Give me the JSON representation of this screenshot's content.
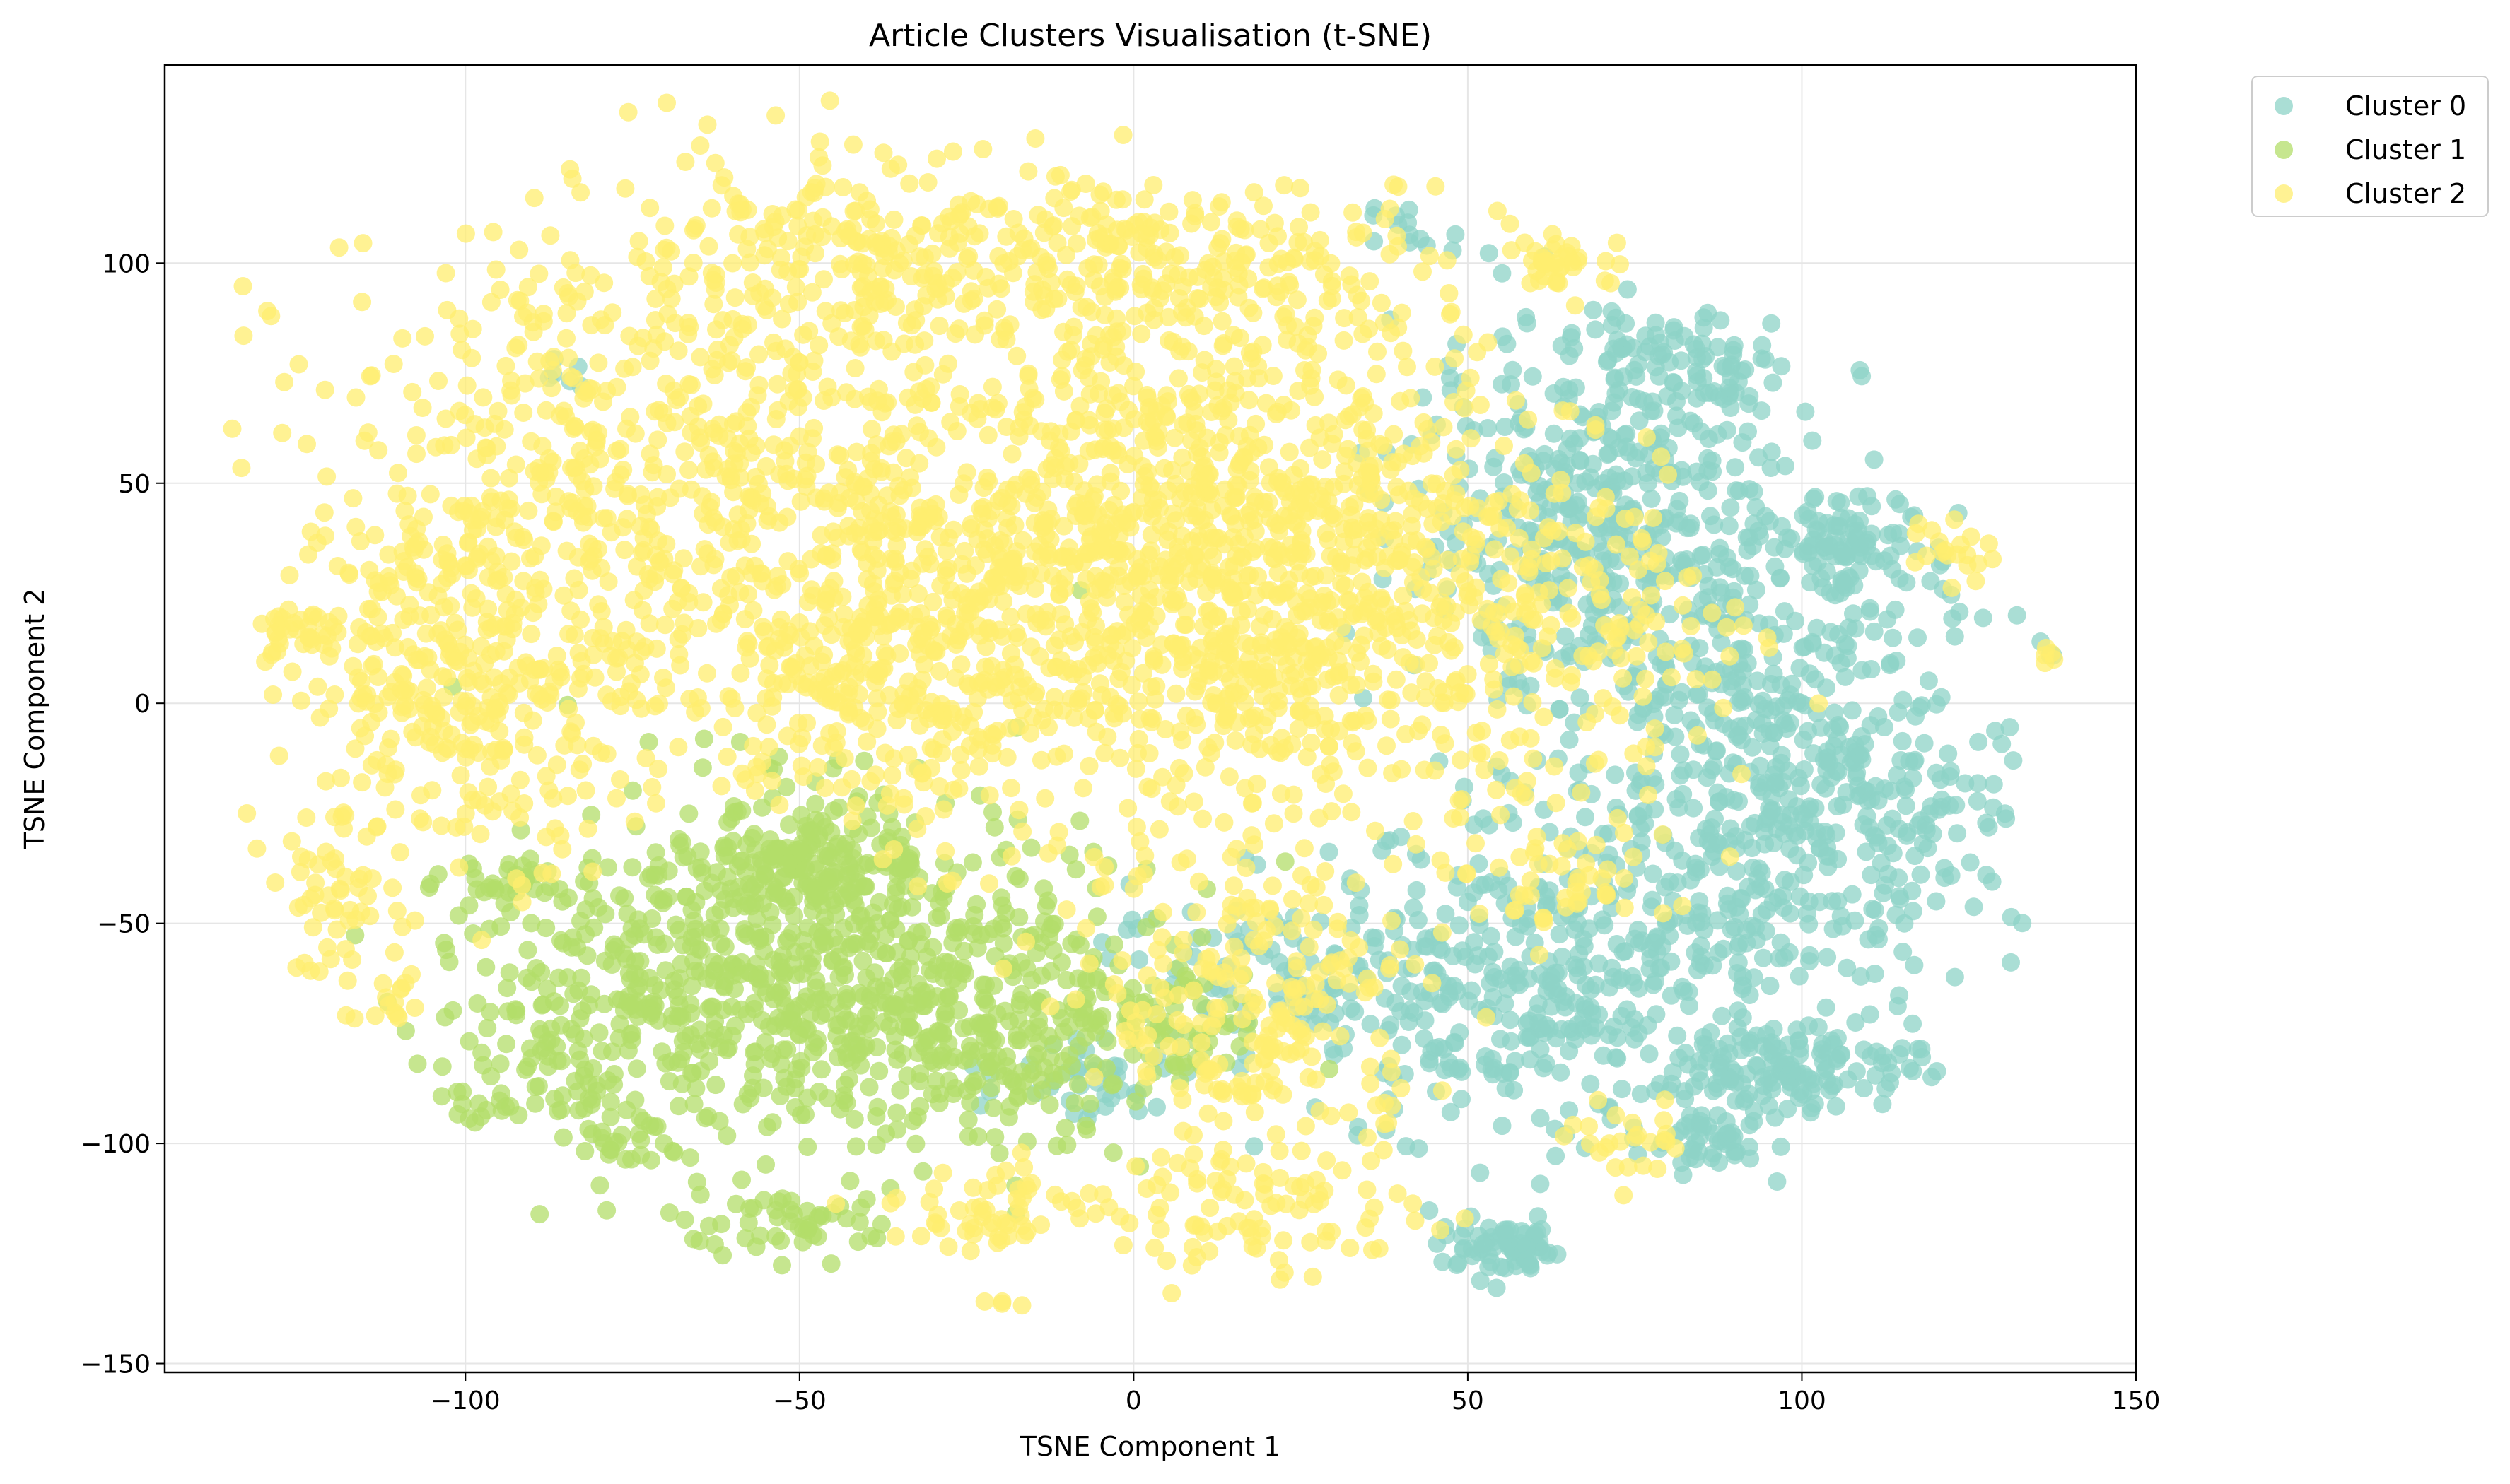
{
  "chart_data": {
    "type": "scatter",
    "title": "Article Clusters Visualisation (t-SNE)",
    "xlabel": "TSNE Component 1",
    "ylabel": "TSNE Component 2",
    "xlim": [
      -145,
      150
    ],
    "ylim": [
      -152,
      145
    ],
    "xticks": [
      -100,
      -50,
      0,
      50,
      100,
      150
    ],
    "yticks": [
      -150,
      -100,
      -50,
      0,
      50,
      100
    ],
    "grid": true,
    "legend": {
      "placement": "outside-top-right",
      "entries": [
        "Cluster 0",
        "Cluster 1",
        "Cluster 2"
      ]
    },
    "series": [
      {
        "name": "Cluster 0",
        "color": "#8dd3c7",
        "clusters": [
          {
            "cx": 95,
            "cy": -15,
            "sx": 14,
            "sy": 30,
            "n": 520
          },
          {
            "cx": 70,
            "cy": 40,
            "sx": 15,
            "sy": 22,
            "n": 420
          },
          {
            "cx": 60,
            "cy": -65,
            "sx": 20,
            "sy": 18,
            "n": 420
          },
          {
            "cx": 80,
            "cy": 75,
            "sx": 8,
            "sy": 8,
            "n": 90
          },
          {
            "cx": 108,
            "cy": 35,
            "sx": 6,
            "sy": 5,
            "n": 70
          },
          {
            "cx": 100,
            "cy": -82,
            "sx": 9,
            "sy": 5,
            "n": 120
          },
          {
            "cx": 87,
            "cy": -100,
            "sx": 4,
            "sy": 3,
            "n": 45
          },
          {
            "cx": 56,
            "cy": -124,
            "sx": 5,
            "sy": 3,
            "n": 70
          },
          {
            "cx": 118,
            "cy": -25,
            "sx": 6,
            "sy": 10,
            "n": 60
          },
          {
            "cx": 15,
            "cy": -60,
            "sx": 14,
            "sy": 8,
            "n": 60
          },
          {
            "cx": -5,
            "cy": -85,
            "sx": 7,
            "sy": 5,
            "n": 40
          },
          {
            "cx": 40,
            "cy": 110,
            "sx": 3,
            "sy": 3,
            "n": 12
          },
          {
            "cx": -85,
            "cy": 76,
            "sx": 2,
            "sy": 2,
            "n": 6
          },
          {
            "cx": 137,
            "cy": 11,
            "sx": 1,
            "sy": 1,
            "n": 3
          }
        ]
      },
      {
        "name": "Cluster 1",
        "color": "#b3de69",
        "clusters": [
          {
            "cx": -50,
            "cy": -60,
            "sx": 22,
            "sy": 20,
            "n": 600
          },
          {
            "cx": -25,
            "cy": -75,
            "sx": 14,
            "sy": 12,
            "n": 220
          },
          {
            "cx": -80,
            "cy": -70,
            "sx": 10,
            "sy": 18,
            "n": 150
          },
          {
            "cx": -48,
            "cy": -35,
            "sx": 8,
            "sy": 6,
            "n": 140
          },
          {
            "cx": -50,
            "cy": -118,
            "sx": 9,
            "sy": 4,
            "n": 50
          },
          {
            "cx": 5,
            "cy": -75,
            "sx": 8,
            "sy": 6,
            "n": 60
          },
          {
            "cx": -95,
            "cy": -40,
            "sx": 5,
            "sy": 3,
            "n": 25
          },
          {
            "cx": -98,
            "cy": -92,
            "sx": 3,
            "sy": 3,
            "n": 12
          },
          {
            "cx": -75,
            "cy": -100,
            "sx": 4,
            "sy": 3,
            "n": 20
          }
        ]
      },
      {
        "name": "Cluster 2",
        "color": "#ffed6f",
        "clusters": [
          {
            "cx": 10,
            "cy": 30,
            "sx": 28,
            "sy": 30,
            "n": 1500
          },
          {
            "cx": -70,
            "cy": 50,
            "sx": 28,
            "sy": 28,
            "n": 700
          },
          {
            "cx": -100,
            "cy": 5,
            "sx": 12,
            "sy": 20,
            "n": 320
          },
          {
            "cx": -40,
            "cy": 100,
            "sx": 24,
            "sy": 12,
            "n": 260
          },
          {
            "cx": 10,
            "cy": 100,
            "sx": 22,
            "sy": 10,
            "n": 200
          },
          {
            "cx": 20,
            "cy": -70,
            "sx": 12,
            "sy": 18,
            "n": 220
          },
          {
            "cx": -40,
            "cy": 5,
            "sx": 15,
            "sy": 14,
            "n": 220
          },
          {
            "cx": -125,
            "cy": 15,
            "sx": 3,
            "sy": 3,
            "n": 30
          },
          {
            "cx": -120,
            "cy": -45,
            "sx": 5,
            "sy": 8,
            "n": 50
          },
          {
            "cx": 65,
            "cy": 100,
            "sx": 5,
            "sy": 3,
            "n": 35
          },
          {
            "cx": 122,
            "cy": 35,
            "sx": 3,
            "sy": 4,
            "n": 20
          },
          {
            "cx": -20,
            "cy": -115,
            "sx": 8,
            "sy": 5,
            "n": 60
          },
          {
            "cx": 20,
            "cy": -115,
            "sx": 12,
            "sy": 8,
            "n": 90
          },
          {
            "cx": 75,
            "cy": -100,
            "sx": 5,
            "sy": 4,
            "n": 25
          },
          {
            "cx": -112,
            "cy": -68,
            "sx": 3,
            "sy": 3,
            "n": 15
          },
          {
            "cx": 70,
            "cy": 15,
            "sx": 12,
            "sy": 20,
            "n": 90
          },
          {
            "cx": 60,
            "cy": -40,
            "sx": 10,
            "sy": 6,
            "n": 50
          },
          {
            "cx": 137,
            "cy": 11,
            "sx": 1,
            "sy": 1,
            "n": 5
          },
          {
            "cx": -20,
            "cy": -137,
            "sx": 2,
            "sy": 1,
            "n": 4
          }
        ]
      }
    ]
  }
}
